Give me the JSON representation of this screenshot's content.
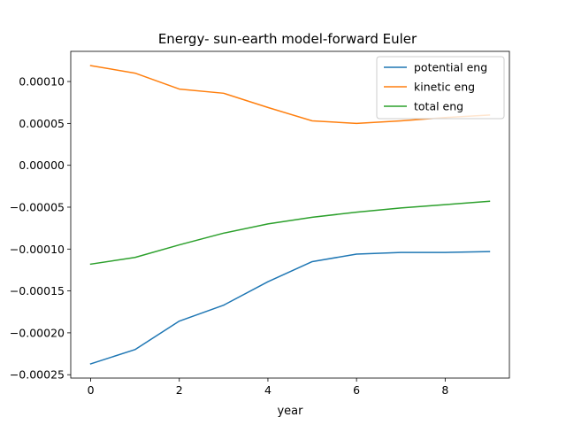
{
  "chart_data": {
    "type": "line",
    "title": "Energy- sun-earth model-forward Euler",
    "xlabel": "year",
    "ylabel": "",
    "x": [
      0,
      1,
      2,
      3,
      4,
      5,
      6,
      7,
      8,
      9
    ],
    "xlim": [
      -0.45,
      9.45
    ],
    "ylim": [
      -0.000254,
      0.000136
    ],
    "xticks": [
      0,
      2,
      4,
      6,
      8
    ],
    "xtick_labels": [
      "0",
      "2",
      "4",
      "6",
      "8"
    ],
    "yticks": [
      -0.00025,
      -0.0002,
      -0.00015,
      -0.0001,
      -5e-05,
      0,
      5e-05,
      0.0001
    ],
    "ytick_labels": [
      "−0.00025",
      "−0.00020",
      "−0.00015",
      "−0.00010",
      "−0.00005",
      "0.00000",
      "0.00005",
      "0.00010"
    ],
    "grid": false,
    "legend_position": "upper right",
    "series": [
      {
        "name": "potential eng",
        "color": "#1f77b4",
        "values": [
          -0.000237,
          -0.00022,
          -0.000186,
          -0.000167,
          -0.000139,
          -0.000115,
          -0.000106,
          -0.000104,
          -0.000104,
          -0.000103
        ]
      },
      {
        "name": "kinetic eng",
        "color": "#ff7f0e",
        "values": [
          0.000119,
          0.00011,
          9.1e-05,
          8.6e-05,
          6.9e-05,
          5.3e-05,
          5e-05,
          5.3e-05,
          5.7e-05,
          6e-05
        ]
      },
      {
        "name": "total eng",
        "color": "#2ca02c",
        "values": [
          -0.000118,
          -0.00011,
          -9.5e-05,
          -8.1e-05,
          -7e-05,
          -6.2e-05,
          -5.6e-05,
          -5.1e-05,
          -4.7e-05,
          -4.3e-05
        ]
      }
    ]
  }
}
